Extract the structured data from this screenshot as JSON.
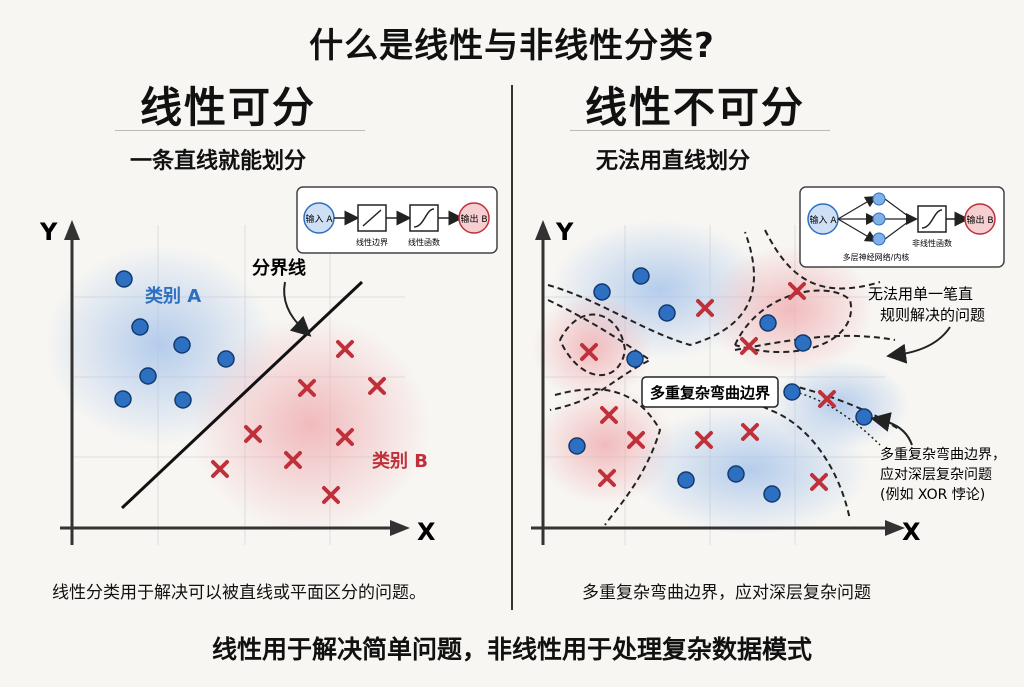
{
  "title": "什么是线性与非线性分类?",
  "left": {
    "heading": "线性可分",
    "subheading": "一条直线就能划分",
    "caption": "线性分类用于解决可以被直线或平面区分的问题。",
    "axis_x": "X",
    "axis_y": "Y",
    "class_a_label": "类别 A",
    "class_b_label": "类别 B",
    "boundary_label": "分界线",
    "diagram": {
      "input": "输入 A",
      "step1": "线性边界",
      "step2": "线性函数",
      "output": "输出 B"
    }
  },
  "right": {
    "heading": "线性不可分",
    "subheading": "无法用直线划分",
    "caption": "多重复杂弯曲边界，应对深层复杂问题",
    "axis_x": "X",
    "axis_y": "Y",
    "center_label": "多重复杂弯曲边界",
    "note1_line1": "无法用单一笔直",
    "note1_line2": "规则解决的问题",
    "note2_line1": "多重复杂弯曲边界，",
    "note2_line2": "应对深层复杂问题",
    "note2_line3": "(例如 XOR 悖论)",
    "diagram": {
      "input": "输入 A",
      "hidden_label": "多层神经网络/内核",
      "step2": "非线性函数",
      "output": "输出 B"
    }
  },
  "footer": "线性用于解决简单问题，非线性用于处理复杂数据模式",
  "colors": {
    "blue": "#2d6fc0",
    "red": "#c0303a",
    "blue_glow": "#a9c5ea",
    "red_glow": "#f0b0b4"
  }
}
